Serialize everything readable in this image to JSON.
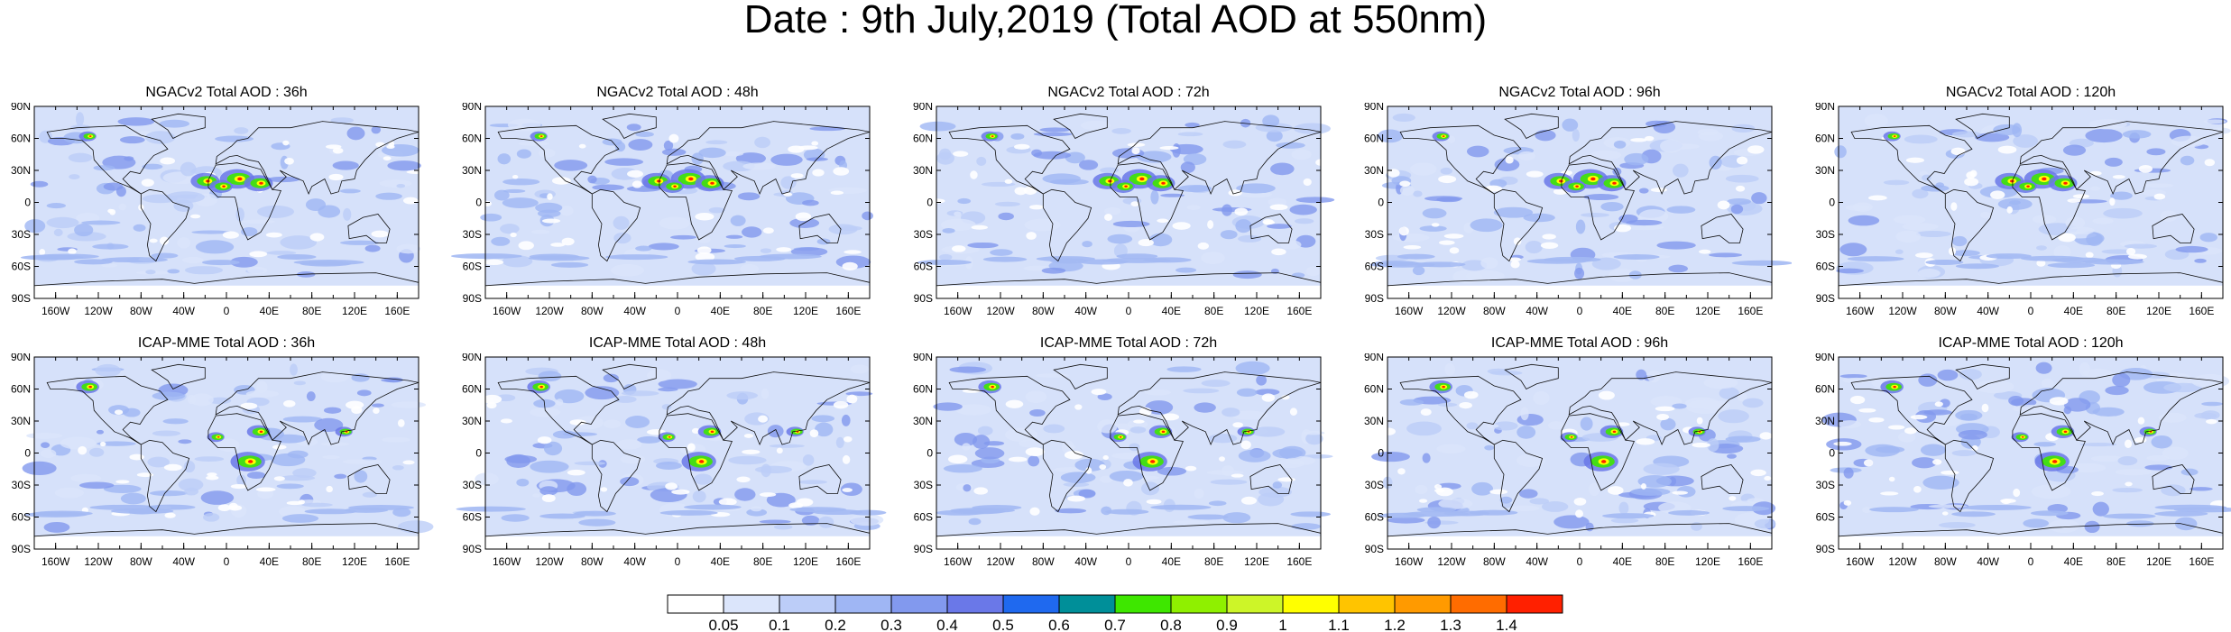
{
  "title": "Date : 9th July,2019 (Total AOD at 550nm)",
  "panels": [
    {
      "title": "NGACv2 Total AOD : 36h"
    },
    {
      "title": "NGACv2 Total AOD : 48h"
    },
    {
      "title": "NGACv2 Total AOD : 72h"
    },
    {
      "title": "NGACv2 Total AOD : 96h"
    },
    {
      "title": "NGACv2 Total AOD : 120h"
    },
    {
      "title": "ICAP-MME Total AOD : 36h"
    },
    {
      "title": "ICAP-MME Total AOD : 48h"
    },
    {
      "title": "ICAP-MME Total AOD : 72h"
    },
    {
      "title": "ICAP-MME Total AOD : 96h"
    },
    {
      "title": "ICAP-MME Total AOD : 120h"
    }
  ],
  "lat_ticks": [
    "90N",
    "60N",
    "30N",
    "0",
    "30S",
    "60S",
    "90S"
  ],
  "lon_ticks": [
    "160W",
    "120W",
    "80W",
    "40W",
    "0",
    "40E",
    "80E",
    "120E",
    "160E"
  ],
  "colorbar": {
    "labels": [
      "0.05",
      "0.1",
      "0.2",
      "0.3",
      "0.4",
      "0.5",
      "0.6",
      "0.7",
      "0.8",
      "0.9",
      "1",
      "1.1",
      "1.2",
      "1.3",
      "1.4"
    ],
    "colors": [
      "#ffffff",
      "#dbe5fb",
      "#bccdf8",
      "#9fb6f4",
      "#8299ee",
      "#6a78e8",
      "#1f69ef",
      "#008f99",
      "#3ee700",
      "#8ff000",
      "#cdf528",
      "#ffff00",
      "#ffc400",
      "#ff9a00",
      "#ff6c00",
      "#ff2000"
    ]
  },
  "hotspots": {
    "ngac": [
      [
        -20,
        20,
        5
      ],
      [
        10,
        22,
        6
      ],
      [
        30,
        18,
        5
      ],
      [
        -130,
        62,
        3
      ],
      [
        -5,
        15,
        4
      ]
    ],
    "icap": [
      [
        -130,
        62,
        4
      ],
      [
        20,
        -8,
        6
      ],
      [
        30,
        20,
        4
      ],
      [
        110,
        20,
        3
      ],
      [
        -10,
        15,
        3
      ]
    ]
  }
}
